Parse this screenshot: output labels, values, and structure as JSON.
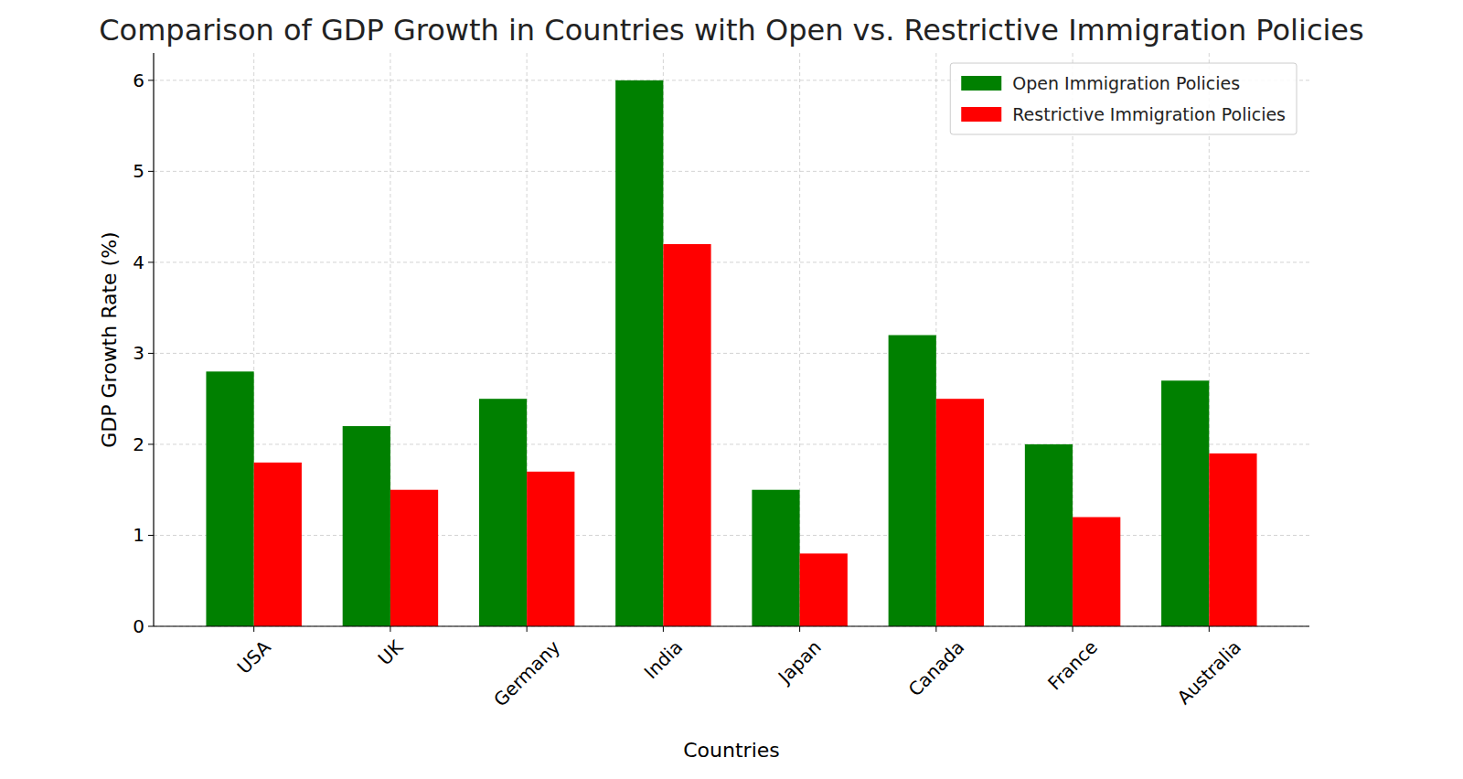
{
  "chart_data": {
    "type": "bar",
    "title": "Comparison of GDP Growth in Countries with Open vs. Restrictive Immigration Policies",
    "x_label": "Countries",
    "y_label": "GDP Growth Rate (%)",
    "categories": [
      "USA",
      "UK",
      "Germany",
      "India",
      "Japan",
      "Canada",
      "France",
      "Australia"
    ],
    "series": [
      {
        "name": "Open Immigration Policies",
        "color": "#008000",
        "values": [
          2.8,
          2.2,
          2.5,
          6.0,
          1.5,
          3.2,
          2.0,
          2.7
        ]
      },
      {
        "name": "Restrictive Immigration Policies",
        "color": "#ff0000",
        "values": [
          1.8,
          1.5,
          1.7,
          4.2,
          0.8,
          2.5,
          1.2,
          1.9
        ]
      }
    ],
    "ylim": [
      0,
      6.3
    ],
    "yticks": [
      0,
      1,
      2,
      3,
      4,
      5,
      6
    ],
    "grid": true,
    "legend": "upper-right"
  }
}
